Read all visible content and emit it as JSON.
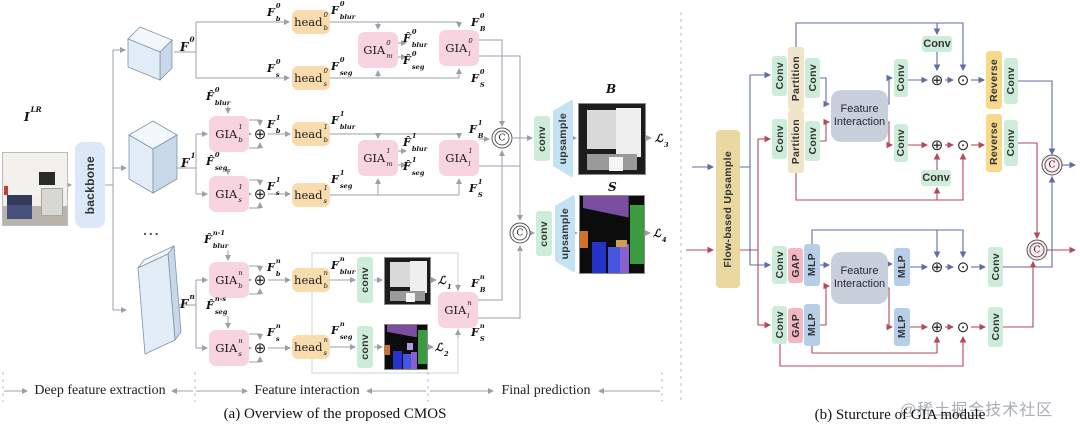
{
  "panel_a": {
    "caption": "(a) Overview of the proposed CMOS",
    "sections": {
      "deep": "Deep feature extraction",
      "interaction": "Feature interaction",
      "final": "Final prediction"
    },
    "input_label": "I^LR",
    "backbone": "backbone",
    "dots": "...",
    "feat_labels": {
      "f0": "F^0",
      "f1": "F^1",
      "fn": "F^n"
    },
    "row0": {
      "fb": "F_b^0",
      "head_b": "head_b^0",
      "fblur": "F_blur^0",
      "fs": "F_s^0",
      "head_s": "head_s^0",
      "fseg": "F_seg^0",
      "gia_m": "GIA_m^0",
      "fhat_blur": "F̂_blur^0",
      "fhat_seg": "F̂_seg^0",
      "gia_l": "GIA_l^0",
      "fB": "F_B^0",
      "fS": "F_S^0"
    },
    "row1": {
      "fhat_blur_in": "F̂_blur^0",
      "gia_b": "GIA_b^1",
      "fb": "F_b^1",
      "head_b": "head_b^1",
      "fblur": "F_blur^1",
      "fhat_seg_in": "F̂_seg^0",
      "gia_s": "GIA_s^1",
      "fs": "F_s^1",
      "head_s": "head_s^1",
      "fseg": "F_seg^1",
      "gia_m": "GIA_m^1",
      "fhat_blur": "F̂_blur^1",
      "fhat_seg": "F̂_seg^1",
      "gia_l": "GIA_l^1",
      "fB": "F_B^1",
      "fS": "F_S^1"
    },
    "rown": {
      "fhat_blur_in": "F̂_blur^n-1",
      "gia_b": "GIA_b^n",
      "fb": "F_b^n",
      "head_b": "head_b^n",
      "fblur": "F_blur^n",
      "conv_b": "conv",
      "loss1": "ℒ_1",
      "fhat_seg_in": "F̂_seg^n-s",
      "gia_s": "GIA_s^n",
      "fs": "F_s^n",
      "head_s": "head_s^n",
      "fseg": "F_seg^n",
      "conv_s": "conv",
      "loss2": "ℒ_2",
      "gia_l": "GIA_l^n",
      "fB": "F_B^n",
      "fS": "F_S^n"
    },
    "output": {
      "conv": "conv",
      "upsample": "upsample",
      "b_label": "B",
      "s_label": "S",
      "loss3": "ℒ_3",
      "loss4": "ℒ_4"
    }
  },
  "panel_b": {
    "caption": "(b) Sturcture of GIA module",
    "watermark": "@稀土掘金技术社区",
    "flow_upsample": "Flow-based Upsample",
    "labels": {
      "conv": "Conv",
      "partition": "Partition",
      "gap": "GAP",
      "mlp": "MLP",
      "reverse": "Reverse",
      "fi": "Feature Interaction"
    }
  },
  "ops": {
    "add": "⊕",
    "mul": "⊙",
    "concat": "C"
  },
  "colors": {
    "gia_pink": "#f8d3e0",
    "head_orange": "#f8dcae",
    "backbone_blue": "#dce8f7",
    "conv_green": "#cdecd9",
    "upsample_blue": "#c3e3f2",
    "panel_b_bg": "#fce9f1",
    "flow_tan": "#e9d9a0",
    "partition_tan": "#f0e4ca",
    "gap_pink": "#f3b8c3",
    "mlp_blue": "#b7cee8",
    "reverse_yellow": "#f7d98b",
    "fi_gray": "#c8d0dc",
    "wire_gray": "#98a1aa",
    "wire_blue": "#5d6da8",
    "wire_red": "#b4495c"
  }
}
